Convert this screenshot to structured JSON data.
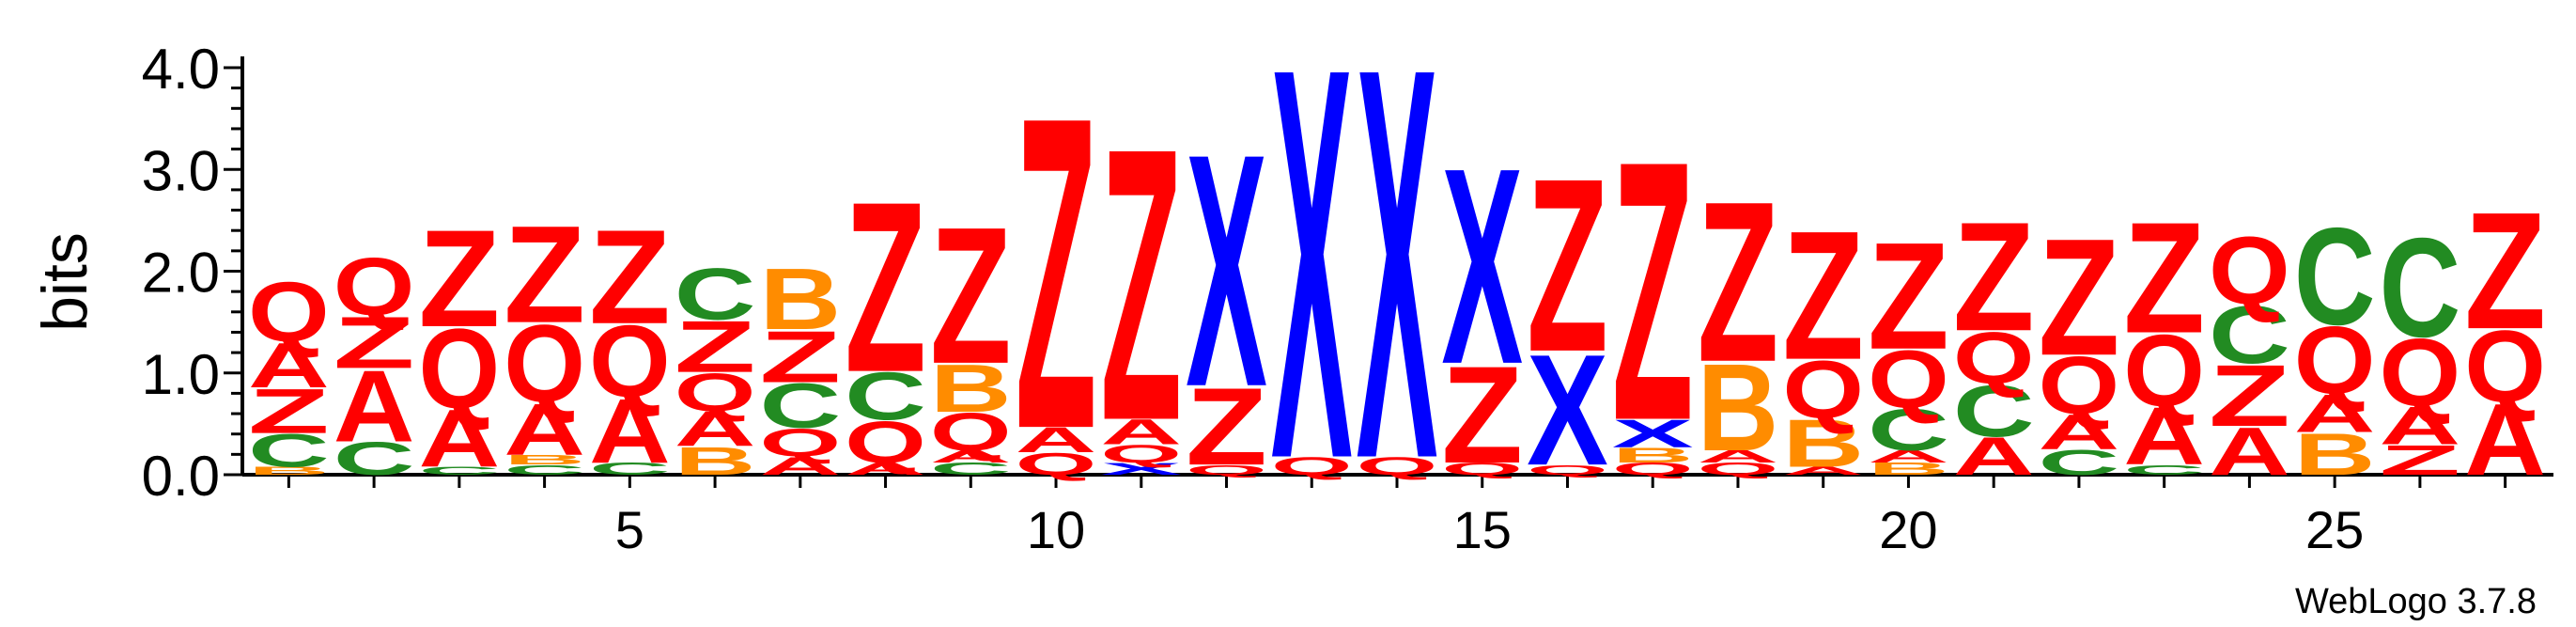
{
  "colors": {
    "A": "#ff0000",
    "Z": "#ff0000",
    "Q": "#ff0000",
    "C": "#228b22",
    "B": "#ff8c00",
    "X": "#0000ff",
    "axis": "#000000"
  },
  "credit": "WebLogo 3.7.8",
  "chart_data": {
    "type": "sequence-logo",
    "title": "",
    "xlabel": "",
    "ylabel": "bits",
    "ylim": [
      0,
      4.0
    ],
    "yticks": [
      "0.0",
      "1.0",
      "2.0",
      "3.0",
      "4.0"
    ],
    "xticks": [
      5,
      10,
      15,
      20,
      25
    ],
    "positions": [
      {
        "pos": 1,
        "letters": [
          {
            "l": "B",
            "h": 0.08
          },
          {
            "l": "C",
            "h": 0.33
          },
          {
            "l": "Z",
            "h": 0.45
          },
          {
            "l": "A",
            "h": 0.45
          },
          {
            "l": "Q",
            "h": 0.6
          }
        ]
      },
      {
        "pos": 2,
        "letters": [
          {
            "l": "C",
            "h": 0.33
          },
          {
            "l": "A",
            "h": 0.72
          },
          {
            "l": "Z",
            "h": 0.52
          },
          {
            "l": "Q",
            "h": 0.58
          }
        ]
      },
      {
        "pos": 3,
        "letters": [
          {
            "l": "C",
            "h": 0.08
          },
          {
            "l": "A",
            "h": 0.58
          },
          {
            "l": "Q",
            "h": 0.8
          },
          {
            "l": "Z",
            "h": 0.98
          }
        ]
      },
      {
        "pos": 4,
        "letters": [
          {
            "l": "C",
            "h": 0.1
          },
          {
            "l": "B",
            "h": 0.1
          },
          {
            "l": "A",
            "h": 0.52
          },
          {
            "l": "Q",
            "h": 0.78
          },
          {
            "l": "Z",
            "h": 0.98
          }
        ]
      },
      {
        "pos": 5,
        "letters": [
          {
            "l": "C",
            "h": 0.12
          },
          {
            "l": "A",
            "h": 0.65
          },
          {
            "l": "Q",
            "h": 0.72
          },
          {
            "l": "Z",
            "h": 0.95
          }
        ]
      },
      {
        "pos": 6,
        "letters": [
          {
            "l": "B",
            "h": 0.28
          },
          {
            "l": "A",
            "h": 0.35
          },
          {
            "l": "Q",
            "h": 0.38
          },
          {
            "l": "Z",
            "h": 0.52
          },
          {
            "l": "C",
            "h": 0.52
          }
        ]
      },
      {
        "pos": 7,
        "letters": [
          {
            "l": "A",
            "h": 0.18
          },
          {
            "l": "Q",
            "h": 0.28
          },
          {
            "l": "C",
            "h": 0.45
          },
          {
            "l": "Z",
            "h": 0.52
          },
          {
            "l": "B",
            "h": 0.62
          }
        ]
      },
      {
        "pos": 8,
        "letters": [
          {
            "l": "A",
            "h": 0.12
          },
          {
            "l": "Q",
            "h": 0.42
          },
          {
            "l": "C",
            "h": 0.48
          },
          {
            "l": "Z",
            "h": 1.72
          }
        ]
      },
      {
        "pos": 9,
        "letters": [
          {
            "l": "C",
            "h": 0.12
          },
          {
            "l": "A",
            "h": 0.12
          },
          {
            "l": "Q",
            "h": 0.38
          },
          {
            "l": "B",
            "h": 0.48
          },
          {
            "l": "Z",
            "h": 1.38
          }
        ]
      },
      {
        "pos": 10,
        "letters": [
          {
            "l": "Q",
            "h": 0.22
          },
          {
            "l": "A",
            "h": 0.25
          },
          {
            "l": "Z",
            "h": 3.15
          }
        ]
      },
      {
        "pos": 11,
        "letters": [
          {
            "l": "X",
            "h": 0.12
          },
          {
            "l": "Q",
            "h": 0.18
          },
          {
            "l": "A",
            "h": 0.25
          },
          {
            "l": "Z",
            "h": 2.75
          }
        ]
      },
      {
        "pos": 12,
        "letters": [
          {
            "l": "Q",
            "h": 0.1
          },
          {
            "l": "Z",
            "h": 0.78
          },
          {
            "l": "X",
            "h": 2.35
          }
        ]
      },
      {
        "pos": 13,
        "letters": [
          {
            "l": "Q",
            "h": 0.18
          },
          {
            "l": "X",
            "h": 3.95
          }
        ]
      },
      {
        "pos": 14,
        "letters": [
          {
            "l": "Q",
            "h": 0.18
          },
          {
            "l": "X",
            "h": 3.95
          }
        ]
      },
      {
        "pos": 15,
        "letters": [
          {
            "l": "Q",
            "h": 0.12
          },
          {
            "l": "Z",
            "h": 0.98
          },
          {
            "l": "X",
            "h": 1.98
          }
        ]
      },
      {
        "pos": 16,
        "letters": [
          {
            "l": "Q",
            "h": 0.1
          },
          {
            "l": "X",
            "h": 1.12
          },
          {
            "l": "Z",
            "h": 1.75
          }
        ]
      },
      {
        "pos": 17,
        "letters": [
          {
            "l": "Q",
            "h": 0.12
          },
          {
            "l": "B",
            "h": 0.15
          },
          {
            "l": "X",
            "h": 0.28
          },
          {
            "l": "Z",
            "h": 2.62
          }
        ]
      },
      {
        "pos": 18,
        "letters": [
          {
            "l": "Q",
            "h": 0.12
          },
          {
            "l": "A",
            "h": 0.12
          },
          {
            "l": "B",
            "h": 0.88
          },
          {
            "l": "Z",
            "h": 1.62
          }
        ]
      },
      {
        "pos": 19,
        "letters": [
          {
            "l": "A",
            "h": 0.08
          },
          {
            "l": "B",
            "h": 0.48
          },
          {
            "l": "Q",
            "h": 0.58
          },
          {
            "l": "Z",
            "h": 1.3
          }
        ]
      },
      {
        "pos": 20,
        "letters": [
          {
            "l": "B",
            "h": 0.12
          },
          {
            "l": "A",
            "h": 0.12
          },
          {
            "l": "C",
            "h": 0.42
          },
          {
            "l": "Q",
            "h": 0.58
          },
          {
            "l": "Z",
            "h": 1.08
          }
        ]
      },
      {
        "pos": 21,
        "letters": [
          {
            "l": "A",
            "h": 0.38
          },
          {
            "l": "C",
            "h": 0.52
          },
          {
            "l": "Q",
            "h": 0.52
          },
          {
            "l": "Z",
            "h": 1.1
          }
        ]
      },
      {
        "pos": 22,
        "letters": [
          {
            "l": "C",
            "h": 0.25
          },
          {
            "l": "A",
            "h": 0.35
          },
          {
            "l": "Q",
            "h": 0.58
          },
          {
            "l": "Z",
            "h": 1.18
          }
        ]
      },
      {
        "pos": 23,
        "letters": [
          {
            "l": "C",
            "h": 0.1
          },
          {
            "l": "A",
            "h": 0.58
          },
          {
            "l": "Q",
            "h": 0.72
          },
          {
            "l": "Z",
            "h": 1.12
          }
        ]
      },
      {
        "pos": 24,
        "letters": [
          {
            "l": "A",
            "h": 0.48
          },
          {
            "l": "Z",
            "h": 0.62
          },
          {
            "l": "C",
            "h": 0.58
          },
          {
            "l": "Q",
            "h": 0.68
          }
        ]
      },
      {
        "pos": 25,
        "letters": [
          {
            "l": "B",
            "h": 0.42
          },
          {
            "l": "A",
            "h": 0.38
          },
          {
            "l": "Q",
            "h": 0.68
          },
          {
            "l": "C",
            "h": 0.98
          }
        ]
      },
      {
        "pos": 26,
        "letters": [
          {
            "l": "Z",
            "h": 0.3
          },
          {
            "l": "A",
            "h": 0.38
          },
          {
            "l": "Q",
            "h": 0.68
          },
          {
            "l": "C",
            "h": 1.0
          }
        ]
      },
      {
        "pos": 27,
        "letters": [
          {
            "l": "A",
            "h": 0.72
          },
          {
            "l": "Q",
            "h": 0.72
          },
          {
            "l": "Z",
            "h": 1.18
          }
        ]
      }
    ]
  }
}
